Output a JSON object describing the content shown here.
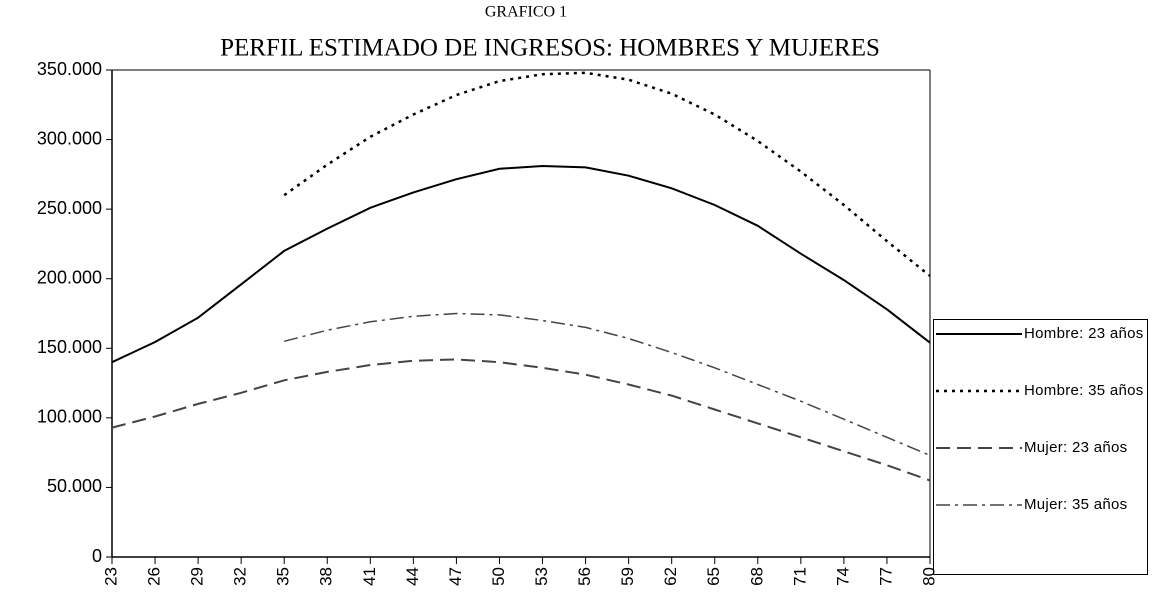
{
  "chart_data": {
    "type": "line",
    "supertitle": "GRAFICO 1",
    "title": "PERFIL ESTIMADO DE INGRESOS: HOMBRES Y MUJERES",
    "x": [
      23,
      26,
      29,
      32,
      35,
      38,
      41,
      44,
      47,
      50,
      53,
      56,
      59,
      62,
      65,
      68,
      71,
      74,
      77,
      80
    ],
    "series": [
      {
        "name": "Hombre: 23 años",
        "color": "#000000",
        "style": "solid",
        "values": [
          140000,
          154500,
          172000,
          196000,
          220000,
          236000,
          251000,
          262000,
          271500,
          279000,
          281000,
          280000,
          274000,
          265000,
          253000,
          238000,
          218000,
          199000,
          178000,
          154000
        ]
      },
      {
        "name": "Hombre: 35 años",
        "color": "#000000",
        "style": "dotted",
        "values": [
          null,
          null,
          null,
          null,
          260000,
          282000,
          302000,
          318000,
          332000,
          342000,
          347000,
          348000,
          343000,
          333000,
          318000,
          299000,
          277000,
          253000,
          227000,
          202000
        ]
      },
      {
        "name": "Mujer: 23 años",
        "color": "#444444",
        "style": "dashed",
        "values": [
          93000,
          101000,
          110000,
          118000,
          127000,
          133000,
          138000,
          141000,
          142000,
          140000,
          136000,
          131000,
          124000,
          116000,
          106000,
          96000,
          86000,
          76000,
          66000,
          55000
        ]
      },
      {
        "name": "Mujer: 35 años",
        "color": "#444444",
        "style": "dashdot",
        "values": [
          null,
          null,
          null,
          null,
          155000,
          163000,
          169000,
          173000,
          175000,
          174000,
          170000,
          165000,
          157000,
          147000,
          136000,
          124000,
          112000,
          99000,
          86000,
          73000
        ]
      }
    ],
    "xlim": [
      23,
      80
    ],
    "xticks": [
      23,
      26,
      29,
      32,
      35,
      38,
      41,
      44,
      47,
      50,
      53,
      56,
      59,
      62,
      65,
      68,
      71,
      74,
      77,
      80
    ],
    "ylim": [
      0,
      350000
    ],
    "yticks": [
      0,
      {
        "value": 50000,
        "label": "50.000"
      },
      {
        "value": 100000,
        "label": "100.000"
      },
      {
        "value": 150000,
        "label": "150.000"
      },
      {
        "value": 200000,
        "label": "200.000"
      },
      {
        "value": 250000,
        "label": "250.000"
      },
      {
        "value": 300000,
        "label": "300.000"
      },
      {
        "value": 350000,
        "label": "350.000"
      }
    ],
    "grid": false,
    "legend": "right"
  }
}
